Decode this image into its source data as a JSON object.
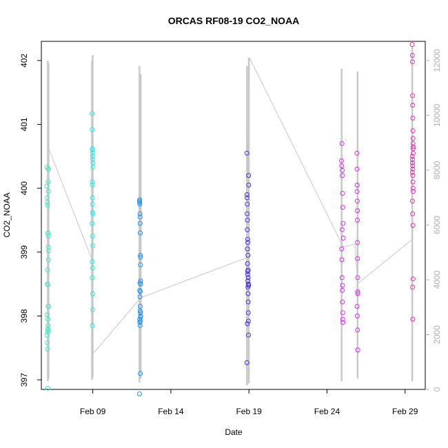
{
  "chart_data": {
    "type": "scatter",
    "title": "ORCAS RF08-19 CO2_NOAA",
    "xlabel": "Date",
    "ylabel": "CO2_NOAA",
    "x_ticks": [
      "Feb 09",
      "Feb 14",
      "Feb 19",
      "Feb 24",
      "Feb 29"
    ],
    "y_ticks": [
      397,
      398,
      399,
      400,
      401,
      402
    ],
    "y2_ticks": [
      0,
      2000,
      4000,
      6000,
      8000,
      10000,
      12000
    ],
    "ylim": [
      396.85,
      402.3
    ],
    "y2lim": [
      0,
      12700
    ],
    "xlim": [
      "2016-02-05T17:00",
      "2016-03-01T07:00"
    ],
    "point_colors": [
      "#40e8c8",
      "#20f0e8",
      "#2090f0",
      "#4030e0",
      "#d030e8",
      "#e030b0"
    ],
    "altitude_color": "#c8c8c8",
    "altitude_series": [
      {
        "x": "2016-02-06T02:30",
        "y": 8900
      },
      {
        "x": "2016-02-08T23:20",
        "y": 4700
      },
      {
        "x": "2016-02-09T00:20",
        "y": 1300
      },
      {
        "x": "2016-02-12T02:00",
        "y": 3350
      },
      {
        "x": "2016-02-18T20:00",
        "y": 4800
      },
      {
        "x": "2016-02-19T01:00",
        "y": 12100
      },
      {
        "x": "2016-02-25T01:00",
        "y": 5200
      },
      {
        "x": "2016-02-25T19:00",
        "y": 5300
      },
      {
        "x": "2016-02-25T23:00",
        "y": 3850
      },
      {
        "x": "2016-02-29T12:00",
        "y": 5500
      }
    ],
    "altitude_spikes": [
      {
        "x": "2016-02-06T03:00",
        "y0": 300,
        "y1": 12000
      },
      {
        "x": "2016-02-06T04:00",
        "y0": 400,
        "y1": 11900
      },
      {
        "x": "2016-02-08T22:50",
        "y0": 350,
        "y1": 12000
      },
      {
        "x": "2016-02-08T23:55",
        "y0": 450,
        "y1": 12200
      },
      {
        "x": "2016-02-11T23:50",
        "y0": 250,
        "y1": 11800
      },
      {
        "x": "2016-02-12T01:40",
        "y0": 400,
        "y1": 11500
      },
      {
        "x": "2016-02-18T21:00",
        "y0": 150,
        "y1": 11800
      },
      {
        "x": "2016-02-18T23:50",
        "y0": 220,
        "y1": 12100
      },
      {
        "x": "2016-02-24T22:30",
        "y0": 300,
        "y1": 11700
      },
      {
        "x": "2016-02-25T23:00",
        "y0": 400,
        "y1": 11600
      },
      {
        "x": "2016-02-29T11:00",
        "y0": 300,
        "y1": 12500
      }
    ],
    "series": [
      {
        "x": [
          "2016-02-06T01:30",
          "2016-02-06T01:30",
          "2016-02-06T02:00",
          "2016-02-06T02:20",
          "2016-02-06T02:40",
          "2016-02-06T03:00",
          "2016-02-06T03:20",
          "2016-02-06T03:40",
          "2016-02-06T04:00",
          "2016-02-06T04:00",
          "2016-02-06T04:10",
          "2016-02-06T02:30",
          "2016-02-06T02:50",
          "2016-02-06T03:10",
          "2016-02-06T03:30",
          "2016-02-06T03:50",
          "2016-02-06T01:50",
          "2016-02-06T02:10",
          "2016-02-06T02:30",
          "2016-02-06T03:00",
          "2016-02-06T03:20",
          "2016-02-06T03:40",
          "2016-02-06T04:00",
          "2016-02-06T02:00",
          "2016-02-06T03:30",
          "2016-02-06T02:40",
          "2016-02-06T03:50",
          "2016-02-06T04:10",
          "2016-02-06T02:20",
          "2016-02-06T03:00"
        ],
        "y": [
          400.33,
          400.03,
          399.85,
          399.78,
          399.73,
          399.3,
          399.3,
          399.08,
          398.88,
          398.15,
          400.3,
          398.72,
          398.49,
          397.95,
          397.85,
          397.78,
          397.7,
          397.58,
          397.48,
          396.87,
          400.1,
          400.3,
          399.95,
          398.02,
          398.15,
          397.8,
          399.25,
          399.02,
          398.5,
          397.75
        ]
      },
      {
        "x": [
          "2016-02-08T23:00",
          "2016-02-08T23:10",
          "2016-02-08T23:20",
          "2016-02-08T23:30",
          "2016-02-08T23:40",
          "2016-02-08T23:50",
          "2016-02-09T00:00",
          "2016-02-09T00:10",
          "2016-02-09T00:20",
          "2016-02-08T23:15",
          "2016-02-08T23:25",
          "2016-02-08T23:35",
          "2016-02-08T23:45",
          "2016-02-08T23:55",
          "2016-02-09T00:05",
          "2016-02-08T23:05",
          "2016-02-08T23:35",
          "2016-02-09T00:15",
          "2016-02-08T23:20",
          "2016-02-08T23:40",
          "2016-02-08T23:10",
          "2016-02-08T23:50",
          "2016-02-09T00:00",
          "2016-02-08T23:30"
        ],
        "y": [
          401.17,
          400.92,
          400.62,
          400.6,
          400.55,
          400.5,
          400.45,
          400.4,
          400.33,
          400.1,
          400.05,
          399.85,
          399.75,
          399.62,
          399.6,
          399.45,
          399.25,
          399.1,
          398.85,
          398.75,
          398.6,
          398.35,
          398.1,
          397.85
        ]
      },
      {
        "x": [
          "2016-02-11T23:50",
          "2016-02-12T00:00",
          "2016-02-12T00:10",
          "2016-02-12T00:20",
          "2016-02-12T00:30",
          "2016-02-12T00:40",
          "2016-02-12T00:50",
          "2016-02-12T01:00",
          "2016-02-12T01:10",
          "2016-02-12T01:20",
          "2016-02-12T01:30",
          "2016-02-12T01:40",
          "2016-02-12T00:15",
          "2016-02-12T00:35",
          "2016-02-12T00:55",
          "2016-02-12T01:15",
          "2016-02-12T01:35",
          "2016-02-12T00:05",
          "2016-02-12T00:25",
          "2016-02-12T00:45",
          "2016-02-12T01:05",
          "2016-02-12T01:25",
          "2016-02-12T00:30",
          "2016-02-12T01:00",
          "2016-02-12T01:30",
          "2016-02-12T00:50",
          "2016-02-12T01:20",
          "2016-02-11T23:55"
        ],
        "y": [
          396.78,
          399.78,
          399.82,
          399.75,
          399.6,
          399.55,
          399.45,
          399.3,
          398.95,
          398.8,
          398.5,
          398.55,
          398.4,
          398.3,
          398.15,
          398.05,
          398.0,
          397.95,
          397.9,
          397.85,
          397.1,
          398.92,
          398.52,
          398.38,
          397.98,
          398.08,
          397.92,
          399.8
        ]
      },
      {
        "x": [
          "2016-02-18T20:50",
          "2016-02-18T21:00",
          "2016-02-18T21:10",
          "2016-02-18T21:20",
          "2016-02-18T21:30",
          "2016-02-18T21:40",
          "2016-02-18T21:50",
          "2016-02-18T22:00",
          "2016-02-18T22:10",
          "2016-02-18T22:20",
          "2016-02-18T22:30",
          "2016-02-18T22:40",
          "2016-02-18T22:50",
          "2016-02-18T23:00",
          "2016-02-18T23:10",
          "2016-02-18T23:20",
          "2016-02-18T23:30",
          "2016-02-18T23:40",
          "2016-02-18T21:05",
          "2016-02-18T21:25",
          "2016-02-18T21:45",
          "2016-02-18T22:05",
          "2016-02-18T22:25",
          "2016-02-18T22:45",
          "2016-02-18T23:05",
          "2016-02-18T23:25",
          "2016-02-18T21:35",
          "2016-02-18T22:15",
          "2016-02-18T22:55",
          "2016-02-18T23:35"
        ],
        "y": [
          400.55,
          397.27,
          399.85,
          399.6,
          399.35,
          399.05,
          398.82,
          398.7,
          398.65,
          398.55,
          398.45,
          398.35,
          398.22,
          398.05,
          397.92,
          397.7,
          400.2,
          400.05,
          399.9,
          399.75,
          399.5,
          399.2,
          398.95,
          398.6,
          398.5,
          398.48,
          397.88,
          399.15,
          398.72,
          398.48
        ]
      },
      {
        "x": [
          "2016-02-24T22:20",
          "2016-02-24T22:40",
          "2016-02-24T23:00",
          "2016-02-24T23:20",
          "2016-02-24T23:40",
          "2016-02-25T00:00",
          "2016-02-25T00:20",
          "2016-02-25T00:40",
          "2016-02-25T01:00",
          "2016-02-24T22:30",
          "2016-02-24T22:50",
          "2016-02-24T23:10",
          "2016-02-24T23:30",
          "2016-02-24T23:50",
          "2016-02-25T00:10",
          "2016-02-25T00:30",
          "2016-02-25T22:00",
          "2016-02-25T22:10",
          "2016-02-25T22:20",
          "2016-02-25T22:30",
          "2016-02-25T22:40",
          "2016-02-25T22:50",
          "2016-02-25T23:00",
          "2016-02-25T23:10",
          "2016-02-25T23:20",
          "2016-02-25T22:15",
          "2016-02-25T22:35",
          "2016-02-25T22:55",
          "2016-02-25T23:15",
          "2016-02-25T22:05",
          "2016-02-25T22:45",
          "2016-02-25T23:05",
          "2016-02-24T23:15",
          "2016-02-24T23:45",
          "2016-02-25T00:15"
        ],
        "y": [
          400.43,
          400.35,
          400.7,
          400.28,
          400.2,
          399.92,
          399.7,
          399.45,
          399.22,
          399.05,
          398.88,
          398.6,
          398.4,
          398.22,
          398.05,
          397.9,
          400.55,
          400.3,
          400.05,
          399.8,
          399.5,
          399.15,
          398.9,
          398.6,
          398.35,
          398.15,
          398.0,
          397.78,
          397.47,
          399.95,
          399.65,
          398.38,
          399.35,
          398.48,
          397.95
        ]
      },
      {
        "x": [
          "2016-02-29T11:00",
          "2016-02-29T11:10",
          "2016-02-29T11:20",
          "2016-02-29T11:30",
          "2016-02-29T11:40",
          "2016-02-29T11:50",
          "2016-02-29T12:00",
          "2016-02-29T12:10",
          "2016-02-29T12:20",
          "2016-02-29T12:30",
          "2016-02-29T11:05",
          "2016-02-29T11:15",
          "2016-02-29T11:25",
          "2016-02-29T11:35",
          "2016-02-29T11:45",
          "2016-02-29T11:55",
          "2016-02-29T12:05",
          "2016-02-29T12:15",
          "2016-02-29T12:25",
          "2016-02-29T11:20",
          "2016-02-29T11:40",
          "2016-02-29T12:00",
          "2016-02-29T12:20",
          "2016-02-29T11:30",
          "2016-02-29T11:50",
          "2016-02-29T12:10",
          "2016-02-29T11:10",
          "2016-02-29T12:30"
        ],
        "y": [
          402.25,
          402.08,
          401.98,
          401.45,
          401.3,
          401.1,
          400.9,
          400.7,
          400.62,
          400.55,
          400.5,
          400.45,
          400.4,
          400.35,
          400.3,
          400.2,
          400.1,
          400.0,
          399.95,
          399.8,
          399.6,
          399.42,
          398.58,
          398.45,
          397.95,
          400.78,
          400.25,
          400.65
        ]
      }
    ]
  }
}
